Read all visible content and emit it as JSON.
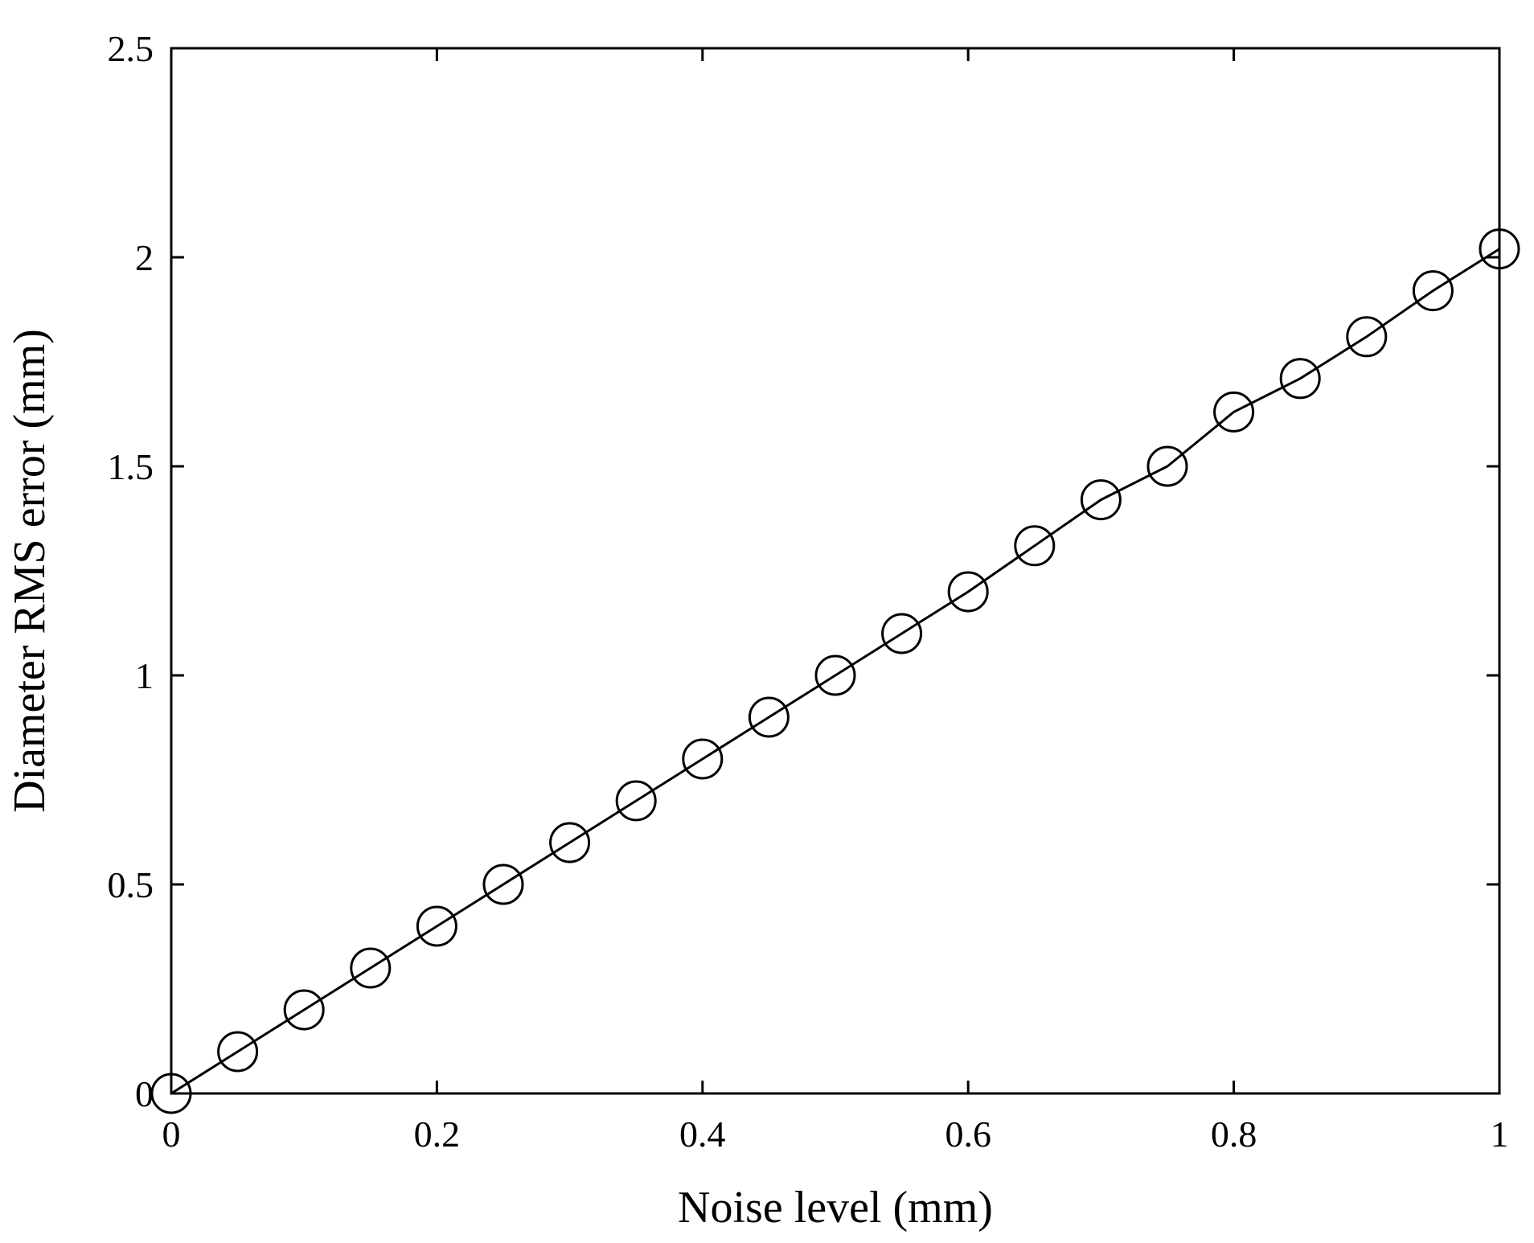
{
  "chart_data": {
    "type": "line",
    "title": "",
    "xlabel": "Noise level (mm)",
    "ylabel": "Diameter RMS error (mm)",
    "xlim": [
      0,
      1
    ],
    "ylim": [
      0,
      2.5
    ],
    "xticks": [
      0,
      0.2,
      0.4,
      0.6,
      0.8,
      1
    ],
    "xtick_labels": [
      "0",
      "0.2",
      "0.4",
      "0.6",
      "0.8",
      "1"
    ],
    "yticks": [
      0,
      0.5,
      1,
      1.5,
      2,
      2.5
    ],
    "ytick_labels": [
      "0",
      "0.5",
      "1",
      "1.5",
      "2",
      "2.5"
    ],
    "grid": false,
    "legend": "none",
    "series": [
      {
        "marker": "open-circle",
        "color": "#000000",
        "x": [
          0,
          0.05,
          0.1,
          0.15,
          0.2,
          0.25,
          0.3,
          0.35,
          0.4,
          0.45,
          0.5,
          0.55,
          0.6,
          0.65,
          0.7,
          0.75,
          0.8,
          0.85,
          0.9,
          0.95,
          1.0
        ],
        "y": [
          0,
          0.1,
          0.2,
          0.3,
          0.4,
          0.5,
          0.6,
          0.7,
          0.8,
          0.9,
          1.0,
          1.1,
          1.2,
          1.31,
          1.42,
          1.5,
          1.63,
          1.71,
          1.81,
          1.92,
          2.02
        ]
      }
    ]
  }
}
